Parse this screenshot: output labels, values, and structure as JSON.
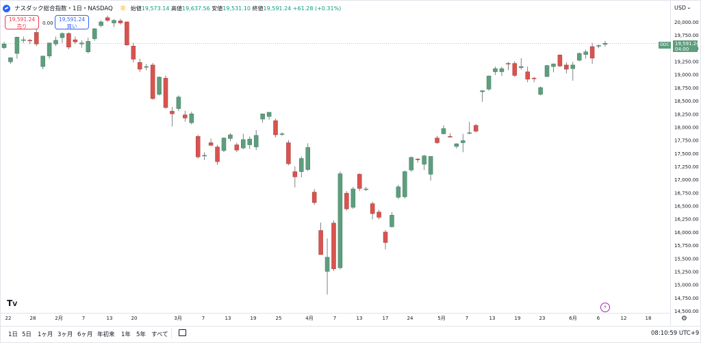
{
  "header": {
    "title": "ナスダック総合指数・1日・NASDAQ",
    "delayed_badge": "D",
    "ohlc": {
      "open_label": "始値",
      "open": "19,573.14",
      "high_label": "高値",
      "high": "19,637.56",
      "low_label": "安値",
      "low": "19,531.10",
      "close_label": "終値",
      "close": "19,591.24",
      "change": "+61.28 (+0.31%)"
    }
  },
  "trade": {
    "sell_price": "19,591.24",
    "sell_label": "売り",
    "buy_price": "19,591.24",
    "buy_label": "買い",
    "spread": "0.00"
  },
  "axis": {
    "currency": "USD",
    "price_labels": [
      "20,000.00",
      "19,750.00",
      "19,500.00",
      "19,250.00",
      "19,000.00",
      "18,750.00",
      "18,500.00",
      "18,250.00",
      "18,000.00",
      "17,750.00",
      "17,500.00",
      "17,250.00",
      "17,000.00",
      "16,750.00",
      "16,500.00",
      "16,250.00",
      "16,000.00",
      "15,750.00",
      "15,500.00",
      "15,250.00",
      "15,000.00",
      "14,750.00",
      "14,500.00"
    ],
    "x_labels": [
      "22",
      "28",
      "2月",
      "7",
      "13",
      "20",
      "3月",
      "7",
      "13",
      "19",
      "25",
      "4月",
      "7",
      "13",
      "17",
      "24",
      "5月",
      "7",
      "13",
      "19",
      "23",
      "6月",
      "6",
      "12",
      "18"
    ],
    "last_price_tag": "19,591.24",
    "countdown": "04:00",
    "ddc_tag": "DDC"
  },
  "icons": {
    "logo": "tradingview-logo",
    "bolt": "lightning-icon",
    "gear": "settings-icon",
    "calendar": "calendar-icon"
  },
  "bottom": {
    "ranges": [
      "1日",
      "5日",
      "1ヶ月",
      "3ヶ月",
      "6ヶ月",
      "年初来",
      "1年",
      "5年",
      "すべて"
    ],
    "clock": "08:10:59 UTC+9"
  },
  "colors": {
    "up": "#5e9e7e",
    "down": "#d9534f",
    "accent": "#2962ff"
  },
  "chart_data": {
    "type": "candlestick",
    "ylim": [
      14500,
      20200
    ],
    "candles": [
      {
        "o": 19510,
        "h": 19620,
        "l": 19480,
        "c": 19580
      },
      {
        "o": 19240,
        "h": 19320,
        "l": 19200,
        "c": 19320
      },
      {
        "o": 19400,
        "h": 19720,
        "l": 19300,
        "c": 19710
      },
      {
        "o": 19650,
        "h": 19720,
        "l": 19600,
        "c": 19660
      },
      {
        "o": 19650,
        "h": 19680,
        "l": 19580,
        "c": 19640
      },
      {
        "o": 19800,
        "h": 19860,
        "l": 19540,
        "c": 19580
      },
      {
        "o": 19150,
        "h": 19320,
        "l": 19100,
        "c": 19350
      },
      {
        "o": 19350,
        "h": 19600,
        "l": 19300,
        "c": 19600
      },
      {
        "o": 19580,
        "h": 19720,
        "l": 19540,
        "c": 19650
      },
      {
        "o": 19700,
        "h": 19800,
        "l": 19600,
        "c": 19780
      },
      {
        "o": 19780,
        "h": 19800,
        "l": 19480,
        "c": 19520
      },
      {
        "o": 19660,
        "h": 19720,
        "l": 19580,
        "c": 19620
      },
      {
        "o": 19580,
        "h": 19650,
        "l": 19510,
        "c": 19600
      },
      {
        "o": 19430,
        "h": 19700,
        "l": 19400,
        "c": 19630
      },
      {
        "o": 19680,
        "h": 19880,
        "l": 19640,
        "c": 19870
      },
      {
        "o": 19930,
        "h": 20030,
        "l": 19900,
        "c": 20000
      },
      {
        "o": 20080,
        "h": 20120,
        "l": 20000,
        "c": 20030
      },
      {
        "o": 19980,
        "h": 20050,
        "l": 19900,
        "c": 20030
      },
      {
        "o": 20020,
        "h": 20060,
        "l": 19950,
        "c": 19980
      },
      {
        "o": 20000,
        "h": 20010,
        "l": 19550,
        "c": 19560
      },
      {
        "o": 19540,
        "h": 19600,
        "l": 19230,
        "c": 19290
      },
      {
        "o": 19230,
        "h": 19300,
        "l": 19050,
        "c": 19100
      },
      {
        "o": 19140,
        "h": 19200,
        "l": 19080,
        "c": 19150
      },
      {
        "o": 19180,
        "h": 19220,
        "l": 18520,
        "c": 18540
      },
      {
        "o": 18620,
        "h": 18960,
        "l": 18600,
        "c": 18950
      },
      {
        "o": 18930,
        "h": 18980,
        "l": 18350,
        "c": 18370
      },
      {
        "o": 18300,
        "h": 18380,
        "l": 18010,
        "c": 18250
      },
      {
        "o": 18350,
        "h": 18600,
        "l": 18300,
        "c": 18570
      },
      {
        "o": 18230,
        "h": 18310,
        "l": 18100,
        "c": 18170
      },
      {
        "o": 18080,
        "h": 18290,
        "l": 18050,
        "c": 18250
      },
      {
        "o": 17820,
        "h": 17850,
        "l": 17400,
        "c": 17430
      },
      {
        "o": 17460,
        "h": 17520,
        "l": 17370,
        "c": 17460
      },
      {
        "o": 17700,
        "h": 17780,
        "l": 17640,
        "c": 17650
      },
      {
        "o": 17620,
        "h": 17660,
        "l": 17280,
        "c": 17340
      },
      {
        "o": 17550,
        "h": 17800,
        "l": 17520,
        "c": 17790
      },
      {
        "o": 17780,
        "h": 17880,
        "l": 17730,
        "c": 17850
      },
      {
        "o": 17660,
        "h": 17700,
        "l": 17520,
        "c": 17560
      },
      {
        "o": 17600,
        "h": 17870,
        "l": 17580,
        "c": 17760
      },
      {
        "o": 17660,
        "h": 17820,
        "l": 17580,
        "c": 17770
      },
      {
        "o": 17620,
        "h": 17940,
        "l": 17560,
        "c": 17840
      },
      {
        "o": 18150,
        "h": 18250,
        "l": 18080,
        "c": 18250
      },
      {
        "o": 18200,
        "h": 18280,
        "l": 18140,
        "c": 18280
      },
      {
        "o": 18120,
        "h": 18160,
        "l": 17800,
        "c": 17850
      },
      {
        "o": 17870,
        "h": 17900,
        "l": 17830,
        "c": 17870
      },
      {
        "o": 17700,
        "h": 17750,
        "l": 17270,
        "c": 17300
      },
      {
        "o": 17150,
        "h": 17250,
        "l": 16850,
        "c": 17050
      },
      {
        "o": 17150,
        "h": 17440,
        "l": 17040,
        "c": 17400
      },
      {
        "o": 17190,
        "h": 17690,
        "l": 17160,
        "c": 17610
      },
      {
        "o": 16760,
        "h": 16820,
        "l": 16520,
        "c": 16560
      },
      {
        "o": 16030,
        "h": 16180,
        "l": 15570,
        "c": 15570
      },
      {
        "o": 15250,
        "h": 15880,
        "l": 14810,
        "c": 15520
      },
      {
        "o": 16170,
        "h": 16220,
        "l": 15260,
        "c": 15300
      },
      {
        "o": 15320,
        "h": 17150,
        "l": 15290,
        "c": 17110
      },
      {
        "o": 16740,
        "h": 16780,
        "l": 16410,
        "c": 16440
      },
      {
        "o": 16470,
        "h": 16860,
        "l": 16440,
        "c": 16820
      },
      {
        "o": 17100,
        "h": 17120,
        "l": 16780,
        "c": 16830
      },
      {
        "o": 16820,
        "h": 16860,
        "l": 16780,
        "c": 16820
      },
      {
        "o": 16540,
        "h": 16580,
        "l": 16240,
        "c": 16350
      },
      {
        "o": 16380,
        "h": 16420,
        "l": 16240,
        "c": 16280
      },
      {
        "o": 16000,
        "h": 16040,
        "l": 15670,
        "c": 15800
      },
      {
        "o": 16100,
        "h": 16380,
        "l": 16090,
        "c": 16320
      },
      {
        "o": 16660,
        "h": 16900,
        "l": 16630,
        "c": 16860
      },
      {
        "o": 16670,
        "h": 17170,
        "l": 16640,
        "c": 17150
      },
      {
        "o": 17180,
        "h": 17440,
        "l": 17150,
        "c": 17420
      },
      {
        "o": 17390,
        "h": 17410,
        "l": 17320,
        "c": 17380
      },
      {
        "o": 17290,
        "h": 17470,
        "l": 17180,
        "c": 17450
      },
      {
        "o": 17100,
        "h": 17440,
        "l": 16980,
        "c": 17440
      },
      {
        "o": 17790,
        "h": 17830,
        "l": 17680,
        "c": 17700
      },
      {
        "o": 17870,
        "h": 18030,
        "l": 17860,
        "c": 17970
      },
      {
        "o": 17820,
        "h": 17880,
        "l": 17800,
        "c": 17810
      },
      {
        "o": 17630,
        "h": 17690,
        "l": 17590,
        "c": 17680
      },
      {
        "o": 17700,
        "h": 17870,
        "l": 17520,
        "c": 17740
      },
      {
        "o": 17890,
        "h": 18100,
        "l": 17860,
        "c": 17890
      },
      {
        "o": 18030,
        "h": 18060,
        "l": 17900,
        "c": 17920
      },
      {
        "o": 18670,
        "h": 18700,
        "l": 18480,
        "c": 18690
      },
      {
        "o": 18720,
        "h": 18980,
        "l": 18690,
        "c": 18970
      },
      {
        "o": 19050,
        "h": 19150,
        "l": 18990,
        "c": 19110
      },
      {
        "o": 19050,
        "h": 19150,
        "l": 18970,
        "c": 19110
      },
      {
        "o": 19210,
        "h": 19240,
        "l": 19080,
        "c": 19200
      },
      {
        "o": 19210,
        "h": 19250,
        "l": 18950,
        "c": 18980
      },
      {
        "o": 19130,
        "h": 19310,
        "l": 19090,
        "c": 19150
      },
      {
        "o": 19050,
        "h": 19150,
        "l": 18850,
        "c": 18910
      },
      {
        "o": 18930,
        "h": 18950,
        "l": 18850,
        "c": 18920
      },
      {
        "o": 18620,
        "h": 18770,
        "l": 18600,
        "c": 18750
      },
      {
        "o": 18960,
        "h": 19180,
        "l": 18950,
        "c": 19170
      },
      {
        "o": 19150,
        "h": 19210,
        "l": 19040,
        "c": 19200
      },
      {
        "o": 19370,
        "h": 19380,
        "l": 19140,
        "c": 19160
      },
      {
        "o": 19180,
        "h": 19230,
        "l": 19020,
        "c": 19100
      },
      {
        "o": 19110,
        "h": 19240,
        "l": 18880,
        "c": 19180
      },
      {
        "o": 19270,
        "h": 19420,
        "l": 19250,
        "c": 19400
      },
      {
        "o": 19380,
        "h": 19470,
        "l": 19300,
        "c": 19430
      },
      {
        "o": 19530,
        "h": 19600,
        "l": 19200,
        "c": 19310
      },
      {
        "o": 19540,
        "h": 19570,
        "l": 19500,
        "c": 19550
      },
      {
        "o": 19573.14,
        "h": 19637.56,
        "l": 19531.1,
        "c": 19591.24
      }
    ]
  }
}
